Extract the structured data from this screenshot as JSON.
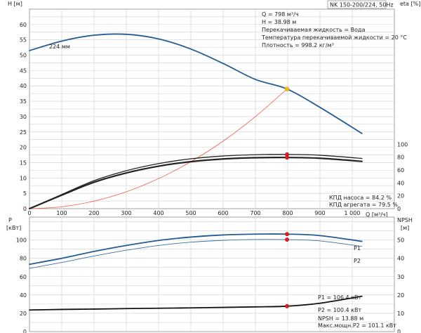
{
  "chart_data": [
    {
      "type": "line",
      "title": "NK 150-200/224, 50Hz",
      "xlabel": "Q [м³/ч]",
      "ylabel": "H [м]",
      "ylabel_right": "eta [%]",
      "xlim": [
        0,
        1000
      ],
      "xticks": [
        "0",
        "100",
        "200",
        "300",
        "400",
        "500",
        "600",
        "700",
        "800",
        "900",
        "1 000"
      ],
      "ylim": [
        0,
        65
      ],
      "yticks": [
        "0",
        "5",
        "10",
        "15",
        "20",
        "25",
        "30",
        "35",
        "40",
        "45",
        "50",
        "55",
        "60"
      ],
      "ylim_right": [
        0,
        310
      ],
      "yticks_right": [
        "0",
        "20",
        "40",
        "60",
        "80",
        "100"
      ],
      "grid": true,
      "curve_label": "224 мм",
      "info_lines": [
        "Q = 798 м³/ч",
        "H = 38.98 м",
        "Перекачиваемая жидкость = Вода",
        "Температура перекачиваемой жидкости = 20 °C",
        "Плотность = 998.2 кг/м³"
      ],
      "eff_lines": [
        "КПД насоса = 84.2 %",
        "КПД агрегата = 79.5 %"
      ],
      "series": [
        {
          "key": "head",
          "axis": "left",
          "color": "#245d91",
          "width": 1.8,
          "x": [
            0,
            100,
            200,
            300,
            400,
            500,
            600,
            700,
            798,
            900,
            1030
          ],
          "y": [
            51.5,
            54.6,
            56.5,
            56.8,
            55.3,
            52.0,
            47.3,
            42.1,
            38.98,
            33.0,
            24.5
          ]
        },
        {
          "key": "system-curve",
          "axis": "left",
          "color": "#f05a4a",
          "width": 0.8,
          "x": [
            0,
            100,
            200,
            300,
            400,
            500,
            600,
            700,
            798
          ],
          "y": [
            0,
            0.6,
            2.45,
            5.5,
            9.8,
            15.3,
            22.0,
            30.0,
            38.98
          ]
        },
        {
          "key": "eta-pump",
          "axis": "right",
          "color": "#222222",
          "width": 1.3,
          "x": [
            0,
            100,
            200,
            300,
            400,
            500,
            600,
            700,
            798,
            900,
            1030
          ],
          "y": [
            0,
            22.0,
            43.5,
            59.0,
            70.0,
            77.5,
            81.8,
            83.8,
            84.2,
            83.0,
            78.0
          ]
        },
        {
          "key": "eta-unit",
          "axis": "right",
          "color": "#222222",
          "width": 2.2,
          "x": [
            0,
            100,
            200,
            300,
            400,
            500,
            600,
            700,
            798,
            900,
            1030
          ],
          "y": [
            0,
            21.0,
            41.0,
            55.5,
            66.0,
            73.0,
            77.2,
            79.1,
            79.5,
            78.3,
            73.5
          ]
        }
      ],
      "markers": [
        {
          "x": 798,
          "y": 38.98,
          "axis": "left",
          "color": "#f2c200",
          "stroke": "#d58a00",
          "r": 2.8
        },
        {
          "x": 798,
          "y": 84.2,
          "axis": "right",
          "color": "#e02020",
          "stroke": "#b00000",
          "r": 2.6
        },
        {
          "x": 798,
          "y": 79.5,
          "axis": "right",
          "color": "#e02020",
          "stroke": "#b00000",
          "r": 2.6
        }
      ]
    },
    {
      "type": "line",
      "xlim": [
        0,
        1000
      ],
      "ylabel": "P [кВт]",
      "ylabel_right": "NPSH [м]",
      "ylim": [
        0,
        125
      ],
      "yticks": [
        "0",
        "20",
        "40",
        "60",
        "80",
        "100"
      ],
      "ylim_right": [
        0,
        62.5
      ],
      "yticks_right": [
        "0",
        "10",
        "20",
        "30",
        "40",
        "50"
      ],
      "grid": true,
      "info_lines": [
        "P1 = 106.4 кВт",
        "P2 = 100.4 кВт",
        "NPSH = 13.88 м",
        "Макс.мощн.P2 = 101.1 кВт"
      ],
      "series": [
        {
          "key": "P1",
          "name": "P1",
          "axis": "left",
          "color": "#245d91",
          "width": 1.8,
          "x": [
            0,
            100,
            200,
            300,
            400,
            500,
            600,
            700,
            798,
            900,
            1030
          ],
          "y": [
            73.5,
            80.0,
            87.5,
            94.0,
            99.5,
            103.2,
            105.5,
            106.4,
            106.4,
            104.8,
            98.5
          ]
        },
        {
          "key": "P2",
          "name": "P2",
          "axis": "left",
          "color": "#3c6ea3",
          "width": 0.9,
          "x": [
            0,
            100,
            200,
            300,
            400,
            500,
            600,
            700,
            798,
            900,
            1030
          ],
          "y": [
            69.0,
            75.5,
            82.5,
            88.8,
            94.0,
            97.6,
            99.6,
            100.5,
            100.4,
            99.0,
            93.0
          ]
        },
        {
          "key": "NPSH",
          "axis": "right",
          "color": "#111111",
          "width": 1.8,
          "x": [
            0,
            100,
            200,
            300,
            400,
            500,
            600,
            700,
            798,
            900,
            1030
          ],
          "y": [
            11.8,
            12.1,
            12.3,
            12.55,
            12.75,
            12.95,
            13.2,
            13.5,
            13.88,
            15.5,
            19.3
          ]
        }
      ],
      "markers": [
        {
          "x": 798,
          "y": 106.4,
          "axis": "left",
          "color": "#e02020",
          "stroke": "#b00000",
          "r": 2.6
        },
        {
          "x": 798,
          "y": 100.4,
          "axis": "left",
          "color": "#e02020",
          "stroke": "#b00000",
          "r": 2.6
        },
        {
          "x": 798,
          "y": 13.88,
          "axis": "right",
          "color": "#e02020",
          "stroke": "#b00000",
          "r": 2.6
        }
      ]
    }
  ]
}
